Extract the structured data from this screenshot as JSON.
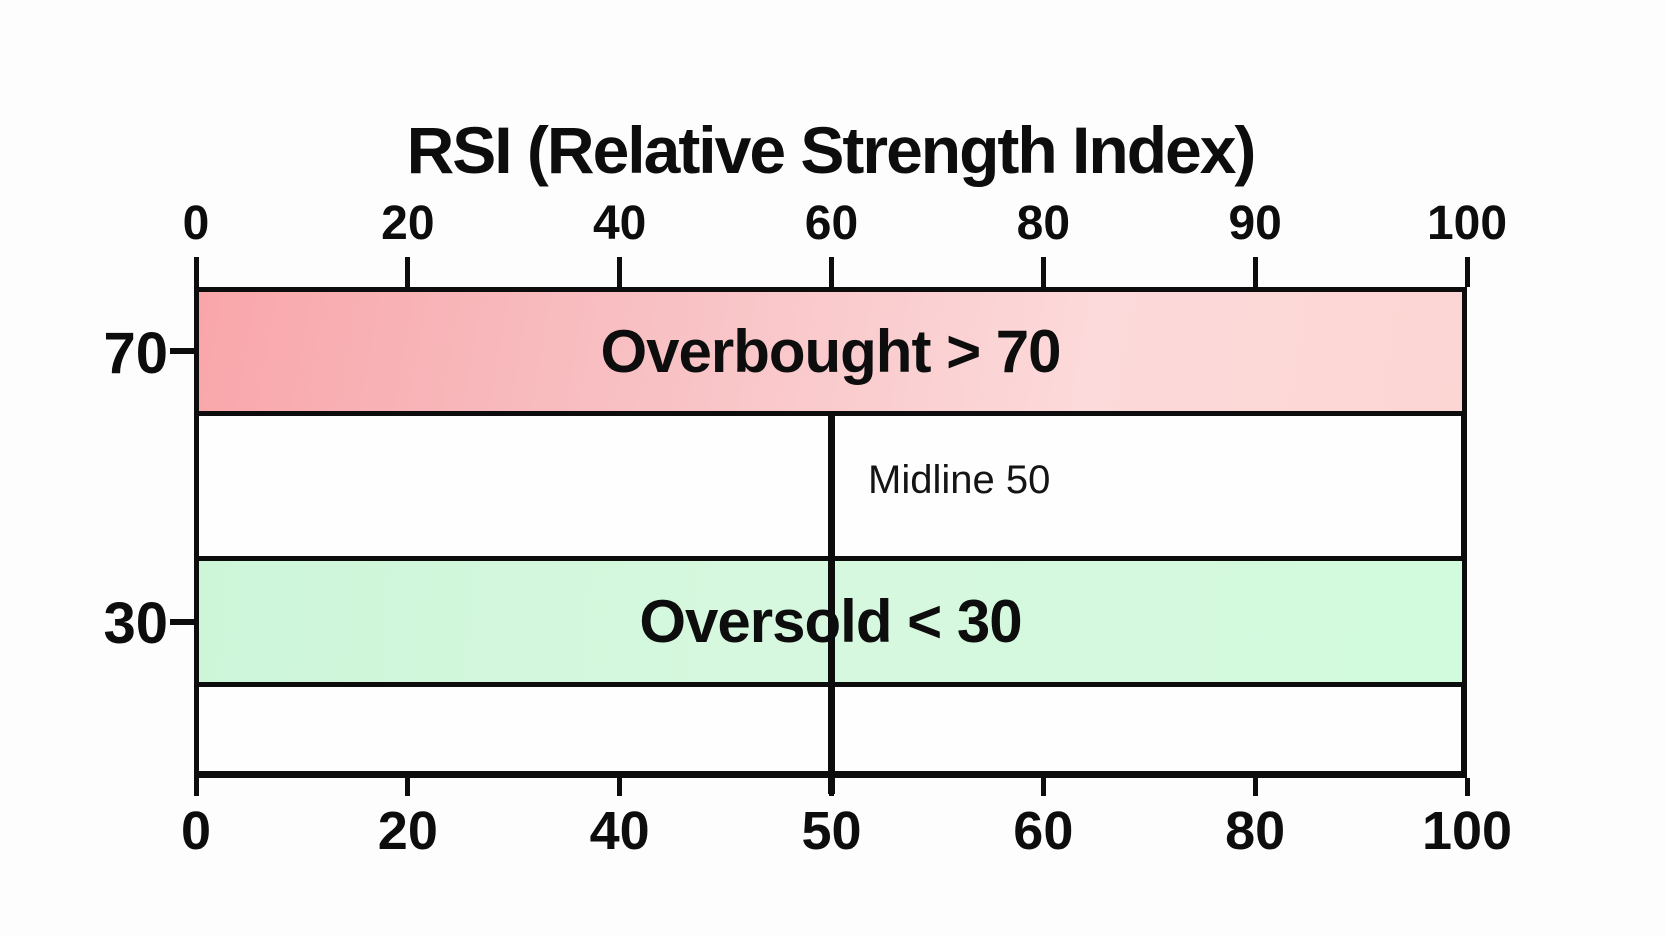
{
  "chart_data": {
    "type": "area",
    "title": "RSI (Relative Strength Index)",
    "x_range": [
      0,
      100
    ],
    "grid": false,
    "legend_position": "none",
    "top_axis_tick_labels": [
      "0",
      "20",
      "40",
      "60",
      "80",
      "90",
      "100"
    ],
    "bottom_axis_tick_labels": [
      "0",
      "20",
      "40",
      "50",
      "60",
      "80",
      "100"
    ],
    "left_axis_tick_labels": [
      "70",
      "30"
    ],
    "zones": [
      {
        "id": "overbought",
        "label": "Overbought > 70",
        "threshold": 70,
        "condition": "RSI > 70",
        "color_left": "#f9a6aa",
        "color_right": "#fcd6d3"
      },
      {
        "id": "oversold",
        "label": "Oversold < 30",
        "threshold": 30,
        "condition": "RSI < 30",
        "color": "#d4f6dd"
      }
    ],
    "midline": {
      "label": "Midline 50",
      "value": 50
    }
  },
  "colors": {
    "axis": "#0d0d0d",
    "text": "#0d0d0d",
    "background": "#fdfdfd"
  }
}
